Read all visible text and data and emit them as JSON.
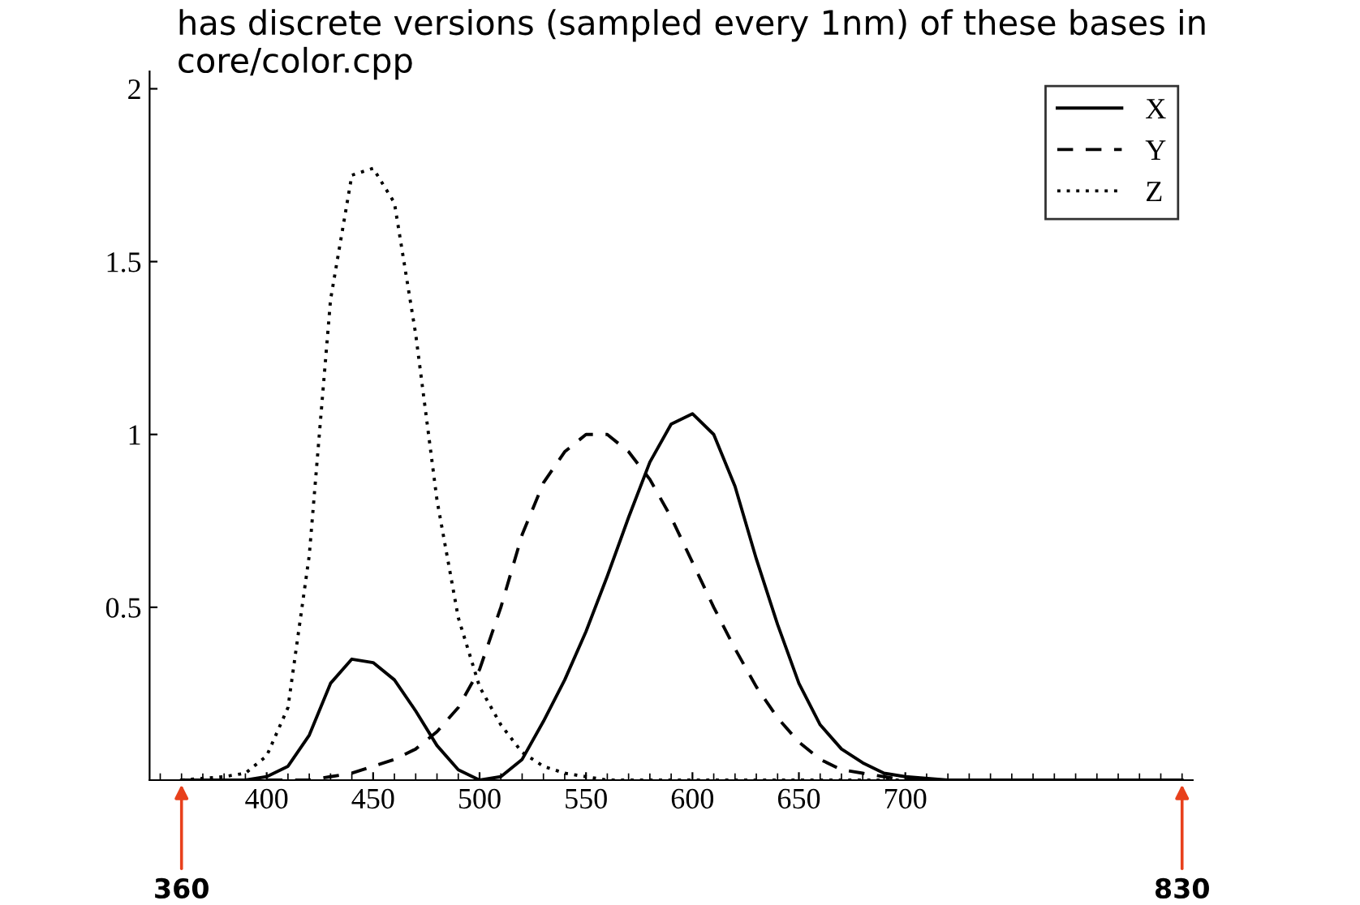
{
  "chart_data": {
    "type": "line",
    "x": [
      360,
      380,
      390,
      400,
      410,
      420,
      430,
      440,
      450,
      460,
      470,
      480,
      490,
      500,
      510,
      520,
      530,
      540,
      550,
      560,
      570,
      580,
      590,
      600,
      610,
      620,
      630,
      640,
      650,
      660,
      670,
      680,
      690,
      700,
      720,
      740,
      780,
      830
    ],
    "series": [
      {
        "name": "X",
        "color": "#000000",
        "line_style": "solid",
        "values": [
          0.0,
          0.0,
          0.0,
          0.01,
          0.04,
          0.13,
          0.28,
          0.35,
          0.34,
          0.29,
          0.2,
          0.1,
          0.03,
          0.0,
          0.01,
          0.06,
          0.17,
          0.29,
          0.43,
          0.59,
          0.76,
          0.92,
          1.03,
          1.06,
          1.0,
          0.85,
          0.64,
          0.45,
          0.28,
          0.16,
          0.09,
          0.05,
          0.02,
          0.01,
          0.0,
          0.0,
          0.0,
          0.0
        ]
      },
      {
        "name": "Y",
        "color": "#000000",
        "line_style": "dashed",
        "values": [
          0.0,
          0.0,
          0.0,
          0.0,
          0.0,
          0.0,
          0.01,
          0.02,
          0.04,
          0.06,
          0.09,
          0.14,
          0.21,
          0.32,
          0.5,
          0.71,
          0.86,
          0.95,
          1.0,
          1.0,
          0.95,
          0.87,
          0.76,
          0.63,
          0.5,
          0.38,
          0.27,
          0.18,
          0.11,
          0.06,
          0.03,
          0.02,
          0.01,
          0.0,
          0.0,
          0.0,
          0.0,
          0.0
        ]
      },
      {
        "name": "Z",
        "color": "#000000",
        "line_style": "dotted",
        "values": [
          0.0,
          0.01,
          0.02,
          0.07,
          0.21,
          0.65,
          1.39,
          1.75,
          1.77,
          1.67,
          1.29,
          0.81,
          0.47,
          0.27,
          0.16,
          0.08,
          0.04,
          0.02,
          0.01,
          0.0,
          0.0,
          0.0,
          0.0,
          0.0,
          0.0,
          0.0,
          0.0,
          0.0,
          0.0,
          0.0,
          0.0,
          0.0,
          0.0,
          0.0,
          0.0,
          0.0,
          0.0,
          0.0
        ]
      }
    ],
    "xlim": [
      345,
      835
    ],
    "xticks": [
      400,
      450,
      500,
      550,
      600,
      650,
      700
    ],
    "ylim": [
      0,
      2.05
    ],
    "yticks": [
      0.5,
      1,
      1.5,
      2
    ],
    "grid": false,
    "legend": "top right",
    "annotations": [
      "has discrete versions (sampled every 1nm) of these bases in core/color.cpp",
      {
        "text": "360",
        "x": 360,
        "y": 0
      },
      {
        "text": "830",
        "x": 830,
        "y": 0
      }
    ]
  }
}
